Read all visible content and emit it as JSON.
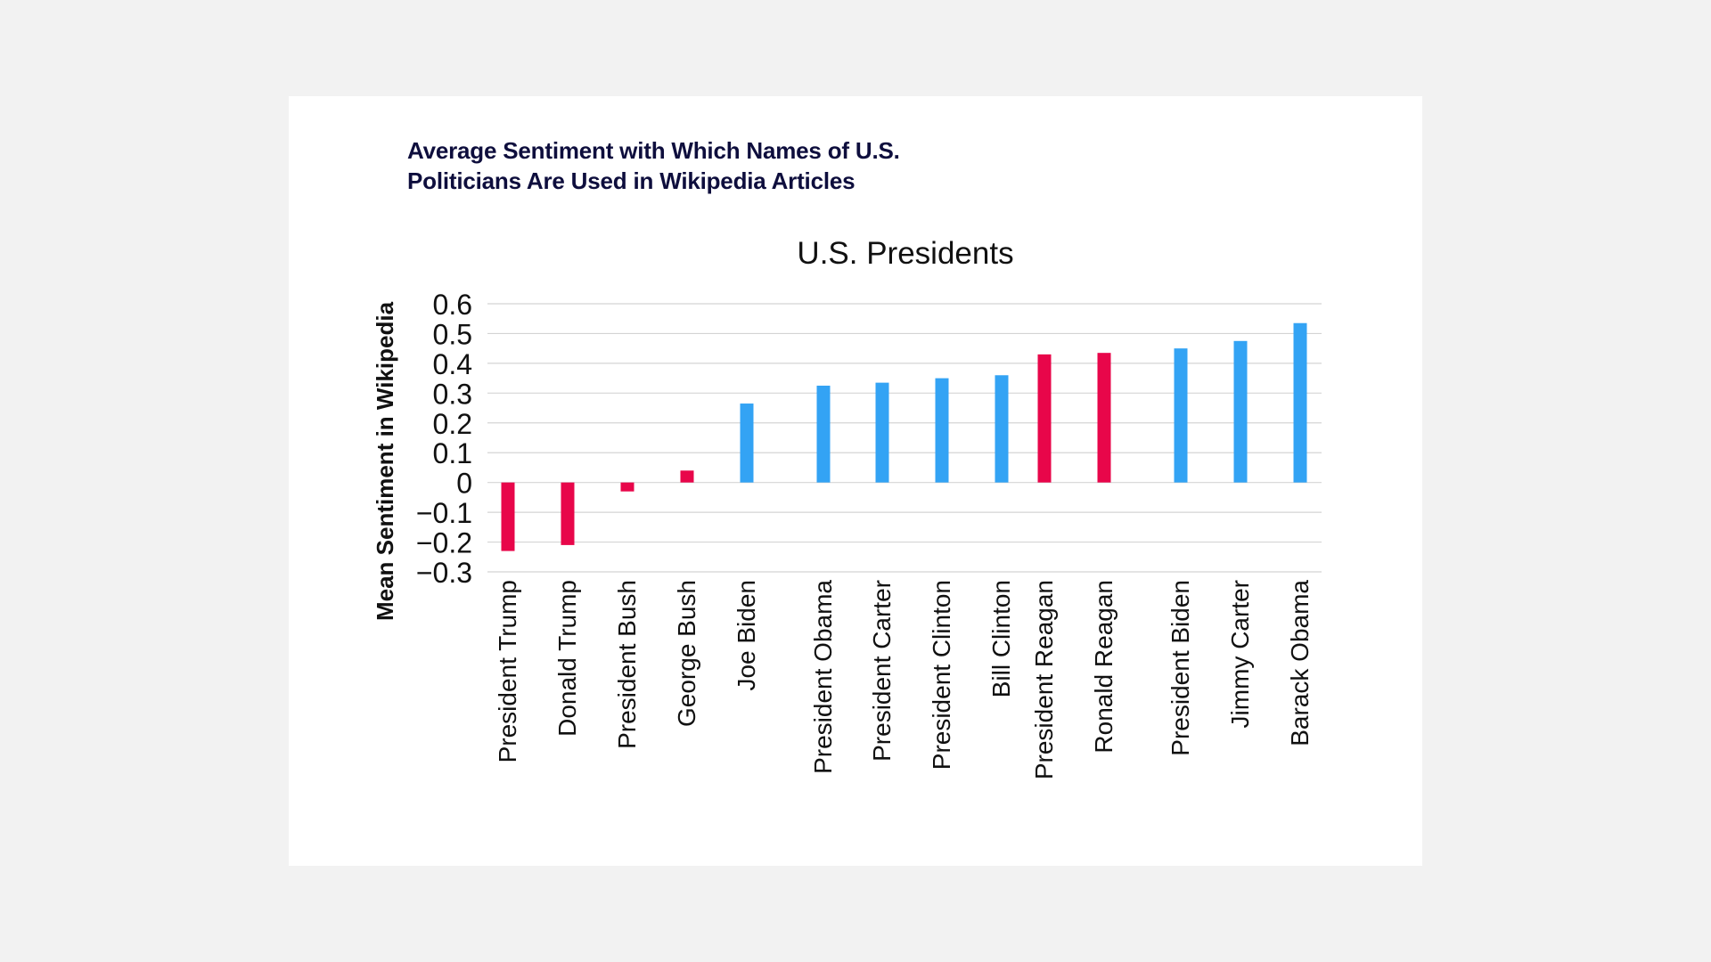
{
  "headline": {
    "line1": "Average Sentiment with Which Names of U.S.",
    "line2": "Politicians Are Used in Wikipedia Articles"
  },
  "colors": {
    "background": "#f2f2f2",
    "card": "#ffffff",
    "headline": "#0e0e3d",
    "republican_bar": "#e8064a",
    "democrat_bar": "#33a3f4",
    "grid": "#d4d4d4"
  },
  "chart_data": {
    "type": "bar",
    "title": "U.S. Presidents",
    "xlabel": "",
    "ylabel": "Mean Sentiment in Wikipedia",
    "ylim": [
      -0.3,
      0.6
    ],
    "yticks": [
      0.6,
      0.5,
      0.4,
      0.3,
      0.2,
      0.1,
      0,
      -0.1,
      -0.2,
      -0.3
    ],
    "ytick_labels": [
      "0.6",
      "0.5",
      "0.4",
      "0.3",
      "0.2",
      "0.1",
      "0",
      "−0.1",
      "−0.2",
      "−0.3"
    ],
    "grid": true,
    "legend": "none",
    "categories": [
      "President Trump",
      "Donald Trump",
      "President Bush",
      "George Bush",
      "Joe Biden",
      "President Obama",
      "President Carter",
      "President Clinton",
      "Bill Clinton",
      "President Reagan",
      "Ronald Reagan",
      "President Biden",
      "Jimmy Carter",
      "Barack Obama"
    ],
    "values": [
      -0.23,
      -0.21,
      -0.03,
      0.04,
      0.265,
      0.325,
      0.335,
      0.35,
      0.36,
      0.43,
      0.435,
      0.45,
      0.475,
      0.535
    ],
    "bar_colors": [
      "#e8064a",
      "#e8064a",
      "#e8064a",
      "#e8064a",
      "#33a3f4",
      "#33a3f4",
      "#33a3f4",
      "#33a3f4",
      "#33a3f4",
      "#e8064a",
      "#e8064a",
      "#33a3f4",
      "#33a3f4",
      "#33a3f4"
    ]
  }
}
